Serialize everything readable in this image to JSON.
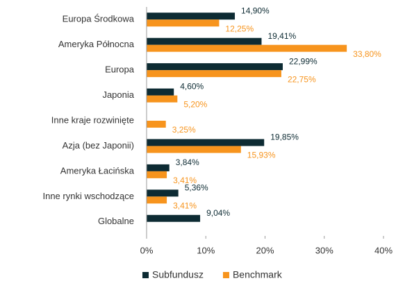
{
  "chart_data": {
    "type": "hbar",
    "categories": [
      "Europa Środkowa",
      "Ameryka Północna",
      "Europa",
      "Japonia",
      "Inne kraje rozwinięte",
      "Azja (bez Japonii)",
      "Ameryka Łacińska",
      "Inne rynki wschodzące",
      "Globalne"
    ],
    "series": [
      {
        "name": "Subfundusz",
        "color": "#0d2b33",
        "values": [
          14.9,
          19.41,
          22.99,
          4.6,
          null,
          19.85,
          3.84,
          5.36,
          9.04
        ],
        "value_labels": [
          "14,90%",
          "19,41%",
          "22,99%",
          "4,60%",
          null,
          "19,85%",
          "3,84%",
          "5,36%",
          "9,04%"
        ]
      },
      {
        "name": "Benchmark",
        "color": "#f7941d",
        "values": [
          12.25,
          33.8,
          22.75,
          5.2,
          3.25,
          15.93,
          3.41,
          3.41,
          null
        ],
        "value_labels": [
          "12,25%",
          "33,80%",
          "22,75%",
          "5,20%",
          "3,25%",
          "15,93%",
          "3,41%",
          "3,41%",
          null
        ]
      }
    ],
    "xlim": [
      0,
      40
    ],
    "xticks": [
      {
        "value": 0,
        "label": "0%"
      },
      {
        "value": 10,
        "label": "10%"
      },
      {
        "value": 20,
        "label": "20%"
      },
      {
        "value": 30,
        "label": "30%"
      },
      {
        "value": 40,
        "label": "40%"
      }
    ],
    "legend": "bottom"
  }
}
